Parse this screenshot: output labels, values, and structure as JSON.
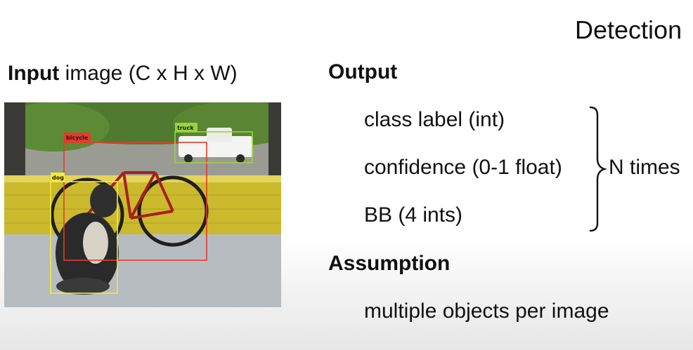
{
  "slide": {
    "title": "Detection"
  },
  "input": {
    "heading_bold": "Input",
    "heading_rest": " image (C x H x W)",
    "detections": [
      {
        "label": "bicycle",
        "color": "#e53b2c"
      },
      {
        "label": "truck",
        "color": "#9ad33f"
      },
      {
        "label": "dog",
        "color": "#f2e93a"
      }
    ]
  },
  "output": {
    "heading": "Output",
    "items": [
      "class label (int)",
      "confidence (0-1 float)",
      "BB (4 ints)"
    ],
    "repeat_label": "N times"
  },
  "assumption": {
    "heading": "Assumption",
    "text": "multiple objects per image"
  }
}
